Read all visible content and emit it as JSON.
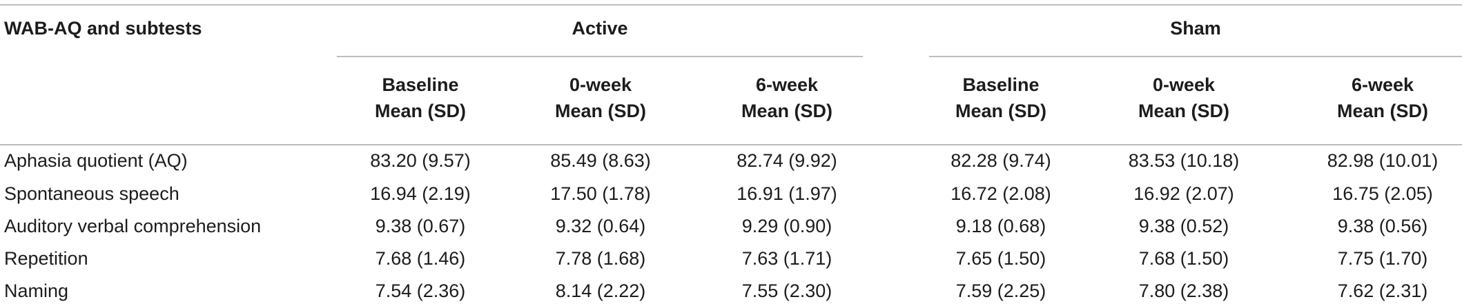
{
  "table": {
    "stub_header": "WAB-AQ and subtests",
    "groups": [
      "Active",
      "Sham"
    ],
    "subheaders": [
      {
        "line1": "Baseline",
        "line2": "Mean (SD)"
      },
      {
        "line1": "0-week",
        "line2": "Mean (SD)"
      },
      {
        "line1": "6-week",
        "line2": "Mean (SD)"
      },
      {
        "line1": "Baseline",
        "line2": "Mean (SD)"
      },
      {
        "line1": "0-week",
        "line2": "Mean (SD)"
      },
      {
        "line1": "6-week",
        "line2": "Mean (SD)"
      }
    ],
    "rows": [
      {
        "label": "Aphasia quotient (AQ)",
        "cells": [
          "83.20 (9.57)",
          "85.49 (8.63)",
          "82.74 (9.92)",
          "82.28 (9.74)",
          "83.53 (10.18)",
          "82.98 (10.01)"
        ]
      },
      {
        "label": "Spontaneous speech",
        "cells": [
          "16.94 (2.19)",
          "17.50 (1.78)",
          "16.91 (1.97)",
          "16.72 (2.08)",
          "16.92 (2.07)",
          "16.75 (2.05)"
        ]
      },
      {
        "label": "Auditory verbal comprehension",
        "cells": [
          "9.38 (0.67)",
          "9.32 (0.64)",
          "9.29 (0.90)",
          "9.18 (0.68)",
          "9.38 (0.52)",
          "9.38 (0.56)"
        ]
      },
      {
        "label": "Repetition",
        "cells": [
          "7.68 (1.46)",
          "7.78 (1.68)",
          "7.63 (1.71)",
          "7.65 (1.50)",
          "7.68 (1.50)",
          "7.75 (1.70)"
        ]
      },
      {
        "label": "Naming",
        "cells": [
          "7.54 (2.36)",
          "8.14 (2.22)",
          "7.55 (2.30)",
          "7.59 (2.25)",
          "7.80 (2.38)",
          "7.62 (2.31)"
        ]
      }
    ]
  }
}
